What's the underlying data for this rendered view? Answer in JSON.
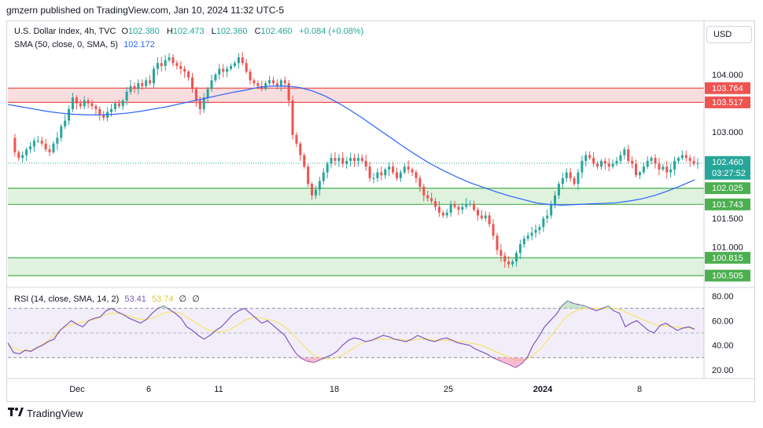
{
  "caption": "gmzern published on TradingView.com, Jan 10, 2024 11:32 UTC-5",
  "header": {
    "symbol": "U.S. Dollar Index, 4h, TVC",
    "o_label": "O",
    "o_value": "102.380",
    "h_label": "H",
    "h_value": "102.473",
    "l_label": "L",
    "l_value": "102.360",
    "c_label": "C",
    "c_value": "102.460",
    "change": "+0.084 (+0.08%)",
    "sma_label": "SMA (50, close, 0, SMA, 5)",
    "sma_value": "102.172",
    "currency_button": "USD"
  },
  "rsi_legend": {
    "label": "RSI (14, close, SMA, 14, 2)",
    "rsi_value": "53.41",
    "sma_value": "53.74",
    "extra1": "∅",
    "extra2": "∅"
  },
  "footer": {
    "brand": "TradingView"
  },
  "colors": {
    "up": "#26a69a",
    "down": "#ef5350",
    "sma": "#2962ff",
    "rsi": "#7e57c2",
    "rsi_sma": "#f7e36b",
    "resistance_zone": "#f8d7d9",
    "support_zone": "#d8f0d8"
  },
  "chart_data": [
    {
      "type": "candlestick",
      "y_ticks": [
        "104.000",
        "103.000",
        "101.500",
        "101.000"
      ],
      "ylim": [
        100.3,
        104.45
      ],
      "x_ticks": [
        "Dec",
        "6",
        "11",
        "18",
        "25",
        "2024",
        "8"
      ],
      "price_labels": [
        {
          "value": "103.764",
          "kind": "resistance"
        },
        {
          "value": "103.517",
          "kind": "resistance"
        },
        {
          "value": "102.460",
          "kind": "last",
          "timer": "03:27:52"
        },
        {
          "value": "102.025",
          "kind": "support"
        },
        {
          "value": "101.743",
          "kind": "support"
        },
        {
          "value": "100.815",
          "kind": "support"
        },
        {
          "value": "100.505",
          "kind": "support"
        }
      ],
      "zones": [
        {
          "low": 103.517,
          "high": 103.764,
          "kind": "resistance"
        },
        {
          "low": 101.743,
          "high": 102.025,
          "kind": "support"
        },
        {
          "low": 100.505,
          "high": 100.815,
          "kind": "support"
        }
      ],
      "close_path": [
        102.9,
        102.65,
        102.55,
        102.6,
        102.7,
        102.75,
        102.85,
        102.85,
        102.8,
        102.7,
        102.65,
        102.8,
        102.9,
        103.1,
        103.2,
        103.4,
        103.6,
        103.5,
        103.45,
        103.55,
        103.5,
        103.45,
        103.4,
        103.3,
        103.25,
        103.35,
        103.4,
        103.5,
        103.45,
        103.55,
        103.7,
        103.8,
        103.75,
        103.85,
        103.8,
        103.9,
        103.85,
        104.1,
        104.2,
        104.15,
        104.25,
        104.3,
        104.2,
        104.15,
        104.1,
        104.05,
        103.95,
        103.75,
        103.55,
        103.4,
        103.6,
        103.75,
        103.9,
        104.0,
        104.1,
        104.05,
        104.1,
        104.15,
        104.2,
        104.3,
        104.2,
        104.05,
        103.9,
        103.85,
        103.8,
        103.75,
        103.85,
        103.9,
        103.85,
        103.8,
        103.9,
        103.85,
        103.55,
        102.95,
        102.8,
        102.6,
        102.4,
        102.1,
        101.9,
        102.0,
        102.15,
        102.3,
        102.45,
        102.55,
        102.5,
        102.55,
        102.45,
        102.5,
        102.55,
        102.5,
        102.55,
        102.5,
        102.4,
        102.2,
        102.2,
        102.3,
        102.25,
        102.35,
        102.4,
        102.3,
        102.2,
        102.3,
        102.4,
        102.35,
        102.3,
        102.2,
        102.05,
        101.9,
        101.85,
        101.8,
        101.7,
        101.6,
        101.55,
        101.6,
        101.75,
        101.7,
        101.65,
        101.7,
        101.75,
        101.75,
        101.65,
        101.55,
        101.5,
        101.55,
        101.4,
        101.2,
        100.95,
        100.85,
        100.75,
        100.7,
        100.75,
        100.9,
        101.05,
        101.15,
        101.2,
        101.25,
        101.3,
        101.35,
        101.5,
        101.55,
        101.75,
        101.9,
        102.1,
        102.2,
        102.3,
        102.2,
        102.1,
        102.3,
        102.5,
        102.6,
        102.55,
        102.45,
        102.4,
        102.5,
        102.45,
        102.4,
        102.45,
        102.5,
        102.6,
        102.7,
        102.5,
        102.45,
        102.25,
        102.3,
        102.4,
        102.5,
        102.55,
        102.45,
        102.35,
        102.4,
        102.3,
        102.35,
        102.5,
        102.55,
        102.6,
        102.55,
        102.5,
        102.45,
        102.46
      ],
      "sma_path": [
        103.48,
        103.44,
        103.4,
        103.36,
        103.33,
        103.31,
        103.3,
        103.3,
        103.31,
        103.33,
        103.36,
        103.4,
        103.44,
        103.49,
        103.54,
        103.59,
        103.64,
        103.69,
        103.73,
        103.78,
        103.8,
        103.8,
        103.78,
        103.72,
        103.63,
        103.51,
        103.37,
        103.22,
        103.06,
        102.9,
        102.74,
        102.59,
        102.45,
        102.33,
        102.22,
        102.12,
        102.04,
        101.96,
        101.89,
        101.83,
        101.77,
        101.74,
        101.73,
        101.74,
        101.75,
        101.76,
        101.77,
        101.8,
        101.84,
        101.9,
        101.98,
        102.07,
        102.17
      ]
    },
    {
      "type": "line",
      "name": "RSI",
      "y_ticks": [
        "80.00",
        "60.00",
        "40.00",
        "20.00"
      ],
      "ylim": [
        13,
        87
      ],
      "bands": [
        30,
        50,
        70
      ],
      "rsi_path": [
        42,
        34,
        33,
        36,
        35,
        38,
        40,
        43,
        45,
        52,
        56,
        60,
        57,
        55,
        60,
        62,
        63,
        68,
        70,
        67,
        65,
        62,
        60,
        58,
        61,
        66,
        70,
        72,
        69,
        66,
        62,
        55,
        52,
        48,
        45,
        48,
        52,
        55,
        60,
        65,
        68,
        70,
        66,
        62,
        58,
        60,
        56,
        52,
        48,
        40,
        33,
        29,
        27,
        26,
        28,
        30,
        32,
        35,
        40,
        44,
        46,
        45,
        43,
        44,
        46,
        48,
        47,
        45,
        44,
        43,
        45,
        48,
        46,
        44,
        43,
        45,
        46,
        44,
        42,
        41,
        40,
        37,
        35,
        33,
        30,
        28,
        26,
        24,
        22,
        25,
        30,
        40,
        47,
        55,
        60,
        65,
        72,
        76,
        74,
        73,
        72,
        70,
        68,
        70,
        72,
        68,
        66,
        55,
        58,
        60,
        56,
        52,
        50,
        56,
        58,
        55,
        52,
        54,
        55,
        53
      ],
      "sma_path": [
        40,
        38,
        36,
        35,
        36,
        38,
        41,
        44,
        48,
        52,
        55,
        57,
        58,
        59,
        60,
        61,
        63,
        65,
        66,
        66,
        65,
        64,
        62,
        61,
        61,
        62,
        64,
        66,
        67,
        67,
        66,
        63,
        60,
        57,
        54,
        52,
        51,
        51,
        52,
        54,
        57,
        60,
        62,
        63,
        62,
        61,
        60,
        58,
        55,
        51,
        46,
        41,
        36,
        32,
        30,
        29,
        29,
        30,
        32,
        35,
        38,
        41,
        43,
        44,
        45,
        45,
        45,
        45,
        45,
        44,
        44,
        45,
        45,
        45,
        44,
        44,
        44,
        44,
        43,
        43,
        42,
        41,
        40,
        38,
        36,
        34,
        32,
        30,
        28,
        28,
        29,
        32,
        36,
        41,
        47,
        53,
        59,
        64,
        67,
        69,
        70,
        70,
        70,
        70,
        70,
        70,
        69,
        67,
        65,
        63,
        61,
        59,
        57,
        56,
        56,
        55,
        55,
        54,
        54,
        54
      ]
    }
  ]
}
